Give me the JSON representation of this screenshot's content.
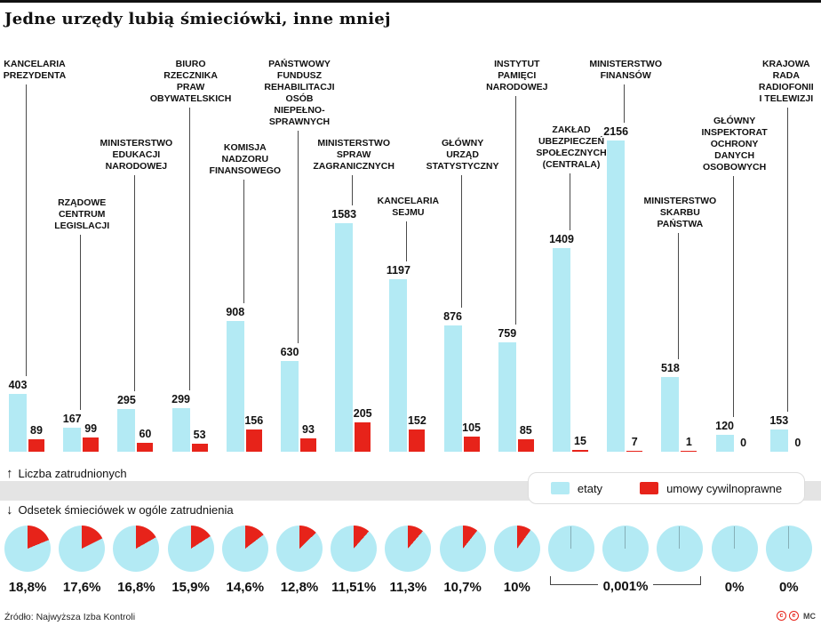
{
  "title": "Jedne urzędy lubią śmieciówki, inne mniej",
  "colors": {
    "etaty": "#b3eaf4",
    "umowy": "#e7231a"
  },
  "icons": {
    "up_arrow": "↑",
    "down_arrow": "↓"
  },
  "axis_up_label": "Liczba zatrudnionych",
  "axis_down_label": "Odsetek śmieciówek w ogóle zatrudnienia",
  "footer": {
    "source": "Źródło: Najwyższa Izba Kontroli",
    "credit": "MC",
    "license_icons": [
      {
        "name": "cc-icon",
        "glyph": "c"
      },
      {
        "name": "by-icon",
        "glyph": "e"
      }
    ]
  },
  "chart_data": {
    "type": "bar",
    "title": "Jedne urzędy lubią śmieciówki, inne mniej",
    "ylim": [
      0,
      2156
    ],
    "legend_position": "right-band",
    "series": [
      "etaty",
      "umowy cywilnoprawne"
    ],
    "pct_group": {
      "label": "0,001%",
      "from": 10,
      "to": 12
    },
    "items": [
      {
        "label": "KANCELARIA\nPREZYDENTA",
        "etaty": 403,
        "umowy": 89,
        "pct": 18.8,
        "pct_label": "18,8%",
        "label_top": 66,
        "label_dx": 8
      },
      {
        "label": "RZĄDOWE\nCENTRUM\nLEGISLACJI",
        "etaty": 167,
        "umowy": 99,
        "pct": 17.6,
        "pct_label": "17,6%",
        "label_top": 222
      },
      {
        "label": "MINISTERSTWO\nEDUKACJI\nNARODOWEJ",
        "etaty": 295,
        "umowy": 60,
        "pct": 16.8,
        "pct_label": "16,8%",
        "label_top": 155
      },
      {
        "label": "BIURO\nRZECZNIKA\nPRAW\nOBYWATELSKICH",
        "etaty": 299,
        "umowy": 53,
        "pct": 15.9,
        "pct_label": "15,9%",
        "label_top": 66
      },
      {
        "label": "KOMISJA\nNADZORU\nFINANSOWEGO",
        "etaty": 908,
        "umowy": 156,
        "pct": 14.6,
        "pct_label": "14,6%",
        "label_top": 160
      },
      {
        "label": "PAŃSTWOWY\nFUNDUSZ\nREHABILITACJI\nOSÓB\nNIEPEŁNO-\nSPRAWNYCH",
        "etaty": 630,
        "umowy": 93,
        "pct": 12.8,
        "pct_label": "12,8%",
        "label_top": 66
      },
      {
        "label": "MINISTERSTWO\nSPRAW\nZAGRANICZNYCH",
        "etaty": 1583,
        "umowy": 205,
        "pct": 11.51,
        "pct_label": "11,51%",
        "label_top": 155
      },
      {
        "label": "KANCELARIA\nSEJMU",
        "etaty": 1197,
        "umowy": 152,
        "pct": 11.3,
        "pct_label": "11,3%",
        "label_top": 220
      },
      {
        "label": "GŁÓWNY\nURZĄD\nSTATYSTYCZNY",
        "etaty": 876,
        "umowy": 105,
        "pct": 10.7,
        "pct_label": "10,7%",
        "label_top": 155
      },
      {
        "label": "INSTYTUT\nPAMIĘCI\nNARODOWEJ",
        "etaty": 759,
        "umowy": 85,
        "pct": 10,
        "pct_label": "10%",
        "label_top": 66
      },
      {
        "label": "ZAKŁAD\nUBEZPIECZEŃ\nSPOŁECZNYCH\n(CENTRALA)",
        "etaty": 1409,
        "umowy": 15,
        "pct": 0.001,
        "pct_label": null,
        "label_top": 140
      },
      {
        "label": "MINISTERSTWO\nFINANSÓW",
        "etaty": 2156,
        "umowy": 7,
        "pct": 0.001,
        "pct_label": null,
        "label_top": 66
      },
      {
        "label": "MINISTERSTWO\nSKARBU\nPAŃSTWA",
        "etaty": 518,
        "umowy": 1,
        "pct": 0.001,
        "pct_label": null,
        "label_top": 220
      },
      {
        "label": "GŁÓWNY\nINSPEKTORAT\nOCHRONY\nDANYCH\nOSOBOWYCH",
        "etaty": 120,
        "umowy": 0,
        "pct": 0,
        "pct_label": "0%",
        "label_top": 130
      },
      {
        "label": "KRAJOWA\nRADA\nRADIOFONII\nI TELEWIZJI",
        "etaty": 153,
        "umowy": 0,
        "pct": 0,
        "pct_label": "0%",
        "label_top": 66,
        "label_dx": -3
      }
    ]
  }
}
